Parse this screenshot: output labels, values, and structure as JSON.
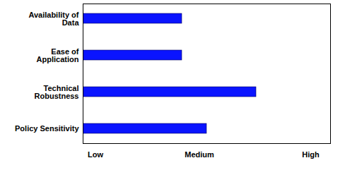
{
  "chart_data": {
    "type": "bar",
    "orientation": "horizontal",
    "categories": [
      "Availability of Data",
      "Ease of Application",
      "Technical Robustness",
      "Policy Sensitivity"
    ],
    "values": [
      4,
      4,
      7,
      5
    ],
    "color": "#0a14ff",
    "xlim": [
      0,
      10
    ],
    "xticks": [
      {
        "value": 0.5,
        "label": "Low"
      },
      {
        "value": 4.7,
        "label": "Medium"
      },
      {
        "value": 9.2,
        "label": "High"
      }
    ],
    "grid": false
  }
}
